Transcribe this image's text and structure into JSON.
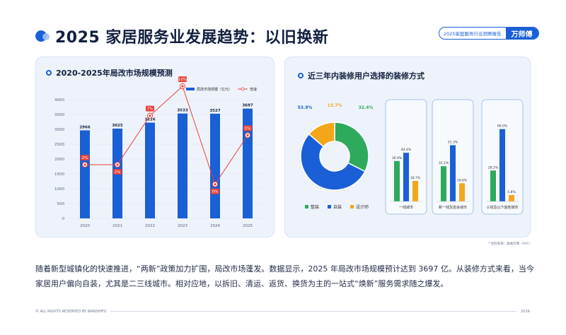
{
  "header": {
    "title": "2025 家居服务业发展趋势：以旧换新",
    "report_label": "2025家庭服务行业洞察报告",
    "brand": "万师傅"
  },
  "left_card": {
    "title": "2020-2025年局改市场规模预测"
  },
  "right_card": {
    "title": "近三年内装修用户选择的装修方式"
  },
  "colors": {
    "primary_blue": "#1a5fd6",
    "red_line": "#e8413a",
    "green": "#2eaa5c",
    "yellow": "#f2a71b"
  },
  "chart_data": [
    {
      "type": "bar",
      "title": "2020-2025年局改市场规模预测",
      "categories": [
        "2020",
        "2021",
        "2022",
        "2023",
        "2024",
        "2025"
      ],
      "series": [
        {
          "name": "局改市场规模（亿元）",
          "type": "bar",
          "values": [
            2966,
            3025,
            3226,
            3533,
            3527,
            3697
          ]
        },
        {
          "name": "增速",
          "type": "line",
          "values": [
            2,
            2,
            7,
            10,
            0,
            5
          ],
          "labels": [
            "2%",
            "2%",
            "7%",
            "10%",
            "0%",
            "5%"
          ]
        }
      ],
      "ylim": [
        0,
        4000
      ],
      "yticks": [
        0,
        500,
        1000,
        1500,
        2000,
        2500,
        3000,
        3500,
        4000
      ],
      "legend": "top-right",
      "grid": true
    },
    {
      "type": "pie",
      "title": "近三年内装修用户选择的装修方式",
      "slices": [
        {
          "name": "整装",
          "value": 32.4,
          "label": "32.4%",
          "color": "#2eaa5c"
        },
        {
          "name": "自装",
          "value": 53.9,
          "label": "53.9%",
          "color": "#1a5fd6"
        },
        {
          "name": "设计师",
          "value": 13.7,
          "label": "13.7%",
          "color": "#f2a71b"
        }
      ],
      "legend": "bottom"
    },
    {
      "type": "bar",
      "panels": [
        {
          "name": "一线城市",
          "values": [
            36.9,
            44.4,
            18.7
          ],
          "labels": [
            "36.9%",
            "44.4%",
            "18.7%"
          ]
        },
        {
          "name": "新一线及省会城市",
          "values": [
            32.1,
            51.3,
            16.6
          ],
          "labels": [
            "32.1%",
            "51.3%",
            "16.6%"
          ]
        },
        {
          "name": "三线及以下其他城市",
          "values": [
            28.2,
            66.0,
            5.8
          ],
          "labels": [
            "28.2%",
            "66.0%",
            "5.8%"
          ]
        }
      ],
      "series_colors": [
        "#2eaa5c",
        "#1a5fd6",
        "#f2a71b"
      ]
    }
  ],
  "source": "* 资料来源：奥维云网（AVC）",
  "body": "随着新型城镇化的快速推进，“两新”政策加力扩围，局改市场蓬发。数据显示，2025 年局改市场规模预计达到 3697 亿。从装修方式来看，当今家居用户偏向自装，尤其是二三线城市。相对应地，以拆旧、清运、返货、换货为主的一站式“焕新”服务需求随之爆发。",
  "footer": {
    "left": "© ALL RIGHTS RESERVED BY WANSHIFU",
    "right": "2026"
  }
}
